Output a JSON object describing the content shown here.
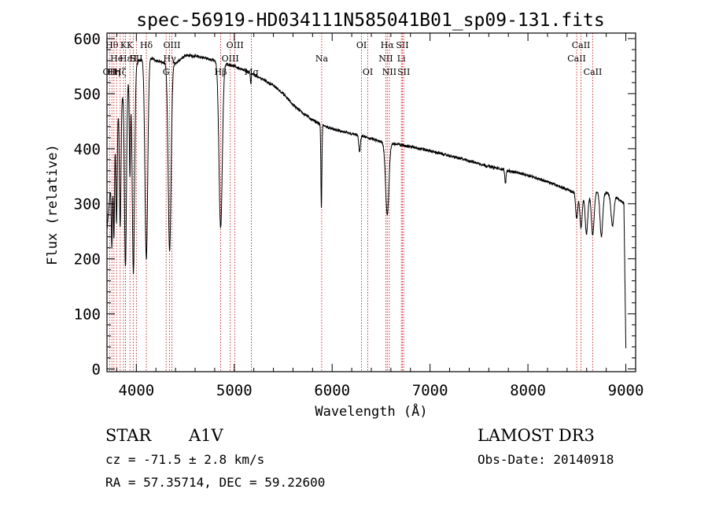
{
  "chart_data": {
    "type": "line",
    "title": "spec-56919-HD034111N585041B01_sp09-131.fits",
    "xlabel": "Wavelength (Å)",
    "ylabel": "Flux (relative)",
    "xlim": [
      3700,
      9100
    ],
    "ylim": [
      -5,
      610
    ],
    "xticks": [
      4000,
      5000,
      6000,
      7000,
      8000,
      9000
    ],
    "yticks": [
      0,
      100,
      200,
      300,
      400,
      500,
      600
    ],
    "continuum": [
      [
        3700,
        250
      ],
      [
        3800,
        470
      ],
      [
        3900,
        520
      ],
      [
        4000,
        555
      ],
      [
        4100,
        570
      ],
      [
        4200,
        560
      ],
      [
        4300,
        555
      ],
      [
        4400,
        555
      ],
      [
        4500,
        570
      ],
      [
        4600,
        568
      ],
      [
        4700,
        565
      ],
      [
        4800,
        560
      ],
      [
        4900,
        555
      ],
      [
        5000,
        550
      ],
      [
        5100,
        542
      ],
      [
        5200,
        535
      ],
      [
        5300,
        525
      ],
      [
        5400,
        515
      ],
      [
        5500,
        500
      ],
      [
        5600,
        480
      ],
      [
        5700,
        465
      ],
      [
        5800,
        452
      ],
      [
        5900,
        443
      ],
      [
        6000,
        436
      ],
      [
        6100,
        431
      ],
      [
        6200,
        427
      ],
      [
        6300,
        423
      ],
      [
        6400,
        418
      ],
      [
        6500,
        412
      ],
      [
        6600,
        410
      ],
      [
        6700,
        407
      ],
      [
        6800,
        404
      ],
      [
        6900,
        400
      ],
      [
        7000,
        396
      ],
      [
        7200,
        387
      ],
      [
        7400,
        378
      ],
      [
        7600,
        368
      ],
      [
        7800,
        360
      ],
      [
        8000,
        352
      ],
      [
        8200,
        340
      ],
      [
        8400,
        326
      ],
      [
        8500,
        318
      ],
      [
        8600,
        315
      ],
      [
        8700,
        322
      ],
      [
        8800,
        320
      ],
      [
        8900,
        312
      ],
      [
        8980,
        300
      ],
      [
        9000,
        40
      ]
    ],
    "absorption_lines": [
      {
        "center": 3750,
        "depth": 140,
        "width": 6
      },
      {
        "center": 3771,
        "depth": 170,
        "width": 6
      },
      {
        "center": 3798,
        "depth": 200,
        "width": 7
      },
      {
        "center": 3835,
        "depth": 230,
        "width": 8
      },
      {
        "center": 3889,
        "depth": 330,
        "width": 10
      },
      {
        "center": 3934,
        "depth": 180,
        "width": 6
      },
      {
        "center": 3970,
        "depth": 370,
        "width": 12
      },
      {
        "center": 4102,
        "depth": 370,
        "width": 14
      },
      {
        "center": 4340,
        "depth": 340,
        "width": 15
      },
      {
        "center": 4861,
        "depth": 300,
        "width": 17
      },
      {
        "center": 5169,
        "depth": 20,
        "width": 4
      },
      {
        "center": 5890,
        "depth": 150,
        "width": 5
      },
      {
        "center": 6280,
        "depth": 30,
        "width": 8
      },
      {
        "center": 6563,
        "depth": 130,
        "width": 17
      },
      {
        "center": 7770,
        "depth": 25,
        "width": 6
      },
      {
        "center": 8498,
        "depth": 45,
        "width": 10
      },
      {
        "center": 8542,
        "depth": 60,
        "width": 12
      },
      {
        "center": 8598,
        "depth": 70,
        "width": 13
      },
      {
        "center": 8662,
        "depth": 75,
        "width": 14
      },
      {
        "center": 8750,
        "depth": 80,
        "width": 14
      },
      {
        "center": 8863,
        "depth": 55,
        "width": 14
      }
    ],
    "line_markers": [
      {
        "wave": 3727,
        "label": "OII",
        "row": 2
      },
      {
        "wave": 3750,
        "label": "Hθ",
        "row": 0
      },
      {
        "wave": 3771,
        "label": "Hη",
        "row": 2
      },
      {
        "wave": 3798,
        "label": "He",
        "row": 1
      },
      {
        "wave": 3835,
        "label": "Hζ",
        "row": 2
      },
      {
        "wave": 3869,
        "label": "K",
        "row": 0
      },
      {
        "wave": 3889,
        "label": "Hε",
        "row": 1
      },
      {
        "wave": 3934,
        "label": "K",
        "row": 0
      },
      {
        "wave": 3968,
        "label": "H",
        "row": 1
      },
      {
        "wave": 4000,
        "label": "SII",
        "row": 1
      },
      {
        "wave": 4102,
        "label": "Hδ",
        "row": 0
      },
      {
        "wave": 4304,
        "label": "G",
        "row": 2
      },
      {
        "wave": 4340,
        "label": "Hγ",
        "row": 1
      },
      {
        "wave": 4363,
        "label": "OIII",
        "row": 0
      },
      {
        "wave": 4861,
        "label": "Hβ",
        "row": 2
      },
      {
        "wave": 4959,
        "label": "OIII",
        "row": 1
      },
      {
        "wave": 5007,
        "label": "OIII",
        "row": 0
      },
      {
        "wave": 5175,
        "label": "Mg",
        "row": 2
      },
      {
        "wave": 5893,
        "label": "Na",
        "row": 1
      },
      {
        "wave": 6300,
        "label": "OI",
        "row": 0
      },
      {
        "wave": 6364,
        "label": "OI",
        "row": 2
      },
      {
        "wave": 6548,
        "label": "NII",
        "row": 1
      },
      {
        "wave": 6563,
        "label": "Hα",
        "row": 0
      },
      {
        "wave": 6584,
        "label": "NII",
        "row": 2
      },
      {
        "wave": 6707,
        "label": "Li",
        "row": 1
      },
      {
        "wave": 6717,
        "label": "SII",
        "row": 0
      },
      {
        "wave": 6731,
        "label": "SII",
        "row": 2
      },
      {
        "wave": 8498,
        "label": "CaII",
        "row": 1
      },
      {
        "wave": 8542,
        "label": "CaII",
        "row": 0
      },
      {
        "wave": 8662,
        "label": "CaII",
        "row": 2
      }
    ]
  },
  "info": {
    "class_label": "STAR",
    "subclass": "A1V",
    "survey": "LAMOST DR3",
    "cz": "cz = -71.5 ± 2.8 km/s",
    "obs_date": "Obs-Date: 20140918",
    "coords": "RA =  57.35714, DEC =  59.22600"
  }
}
